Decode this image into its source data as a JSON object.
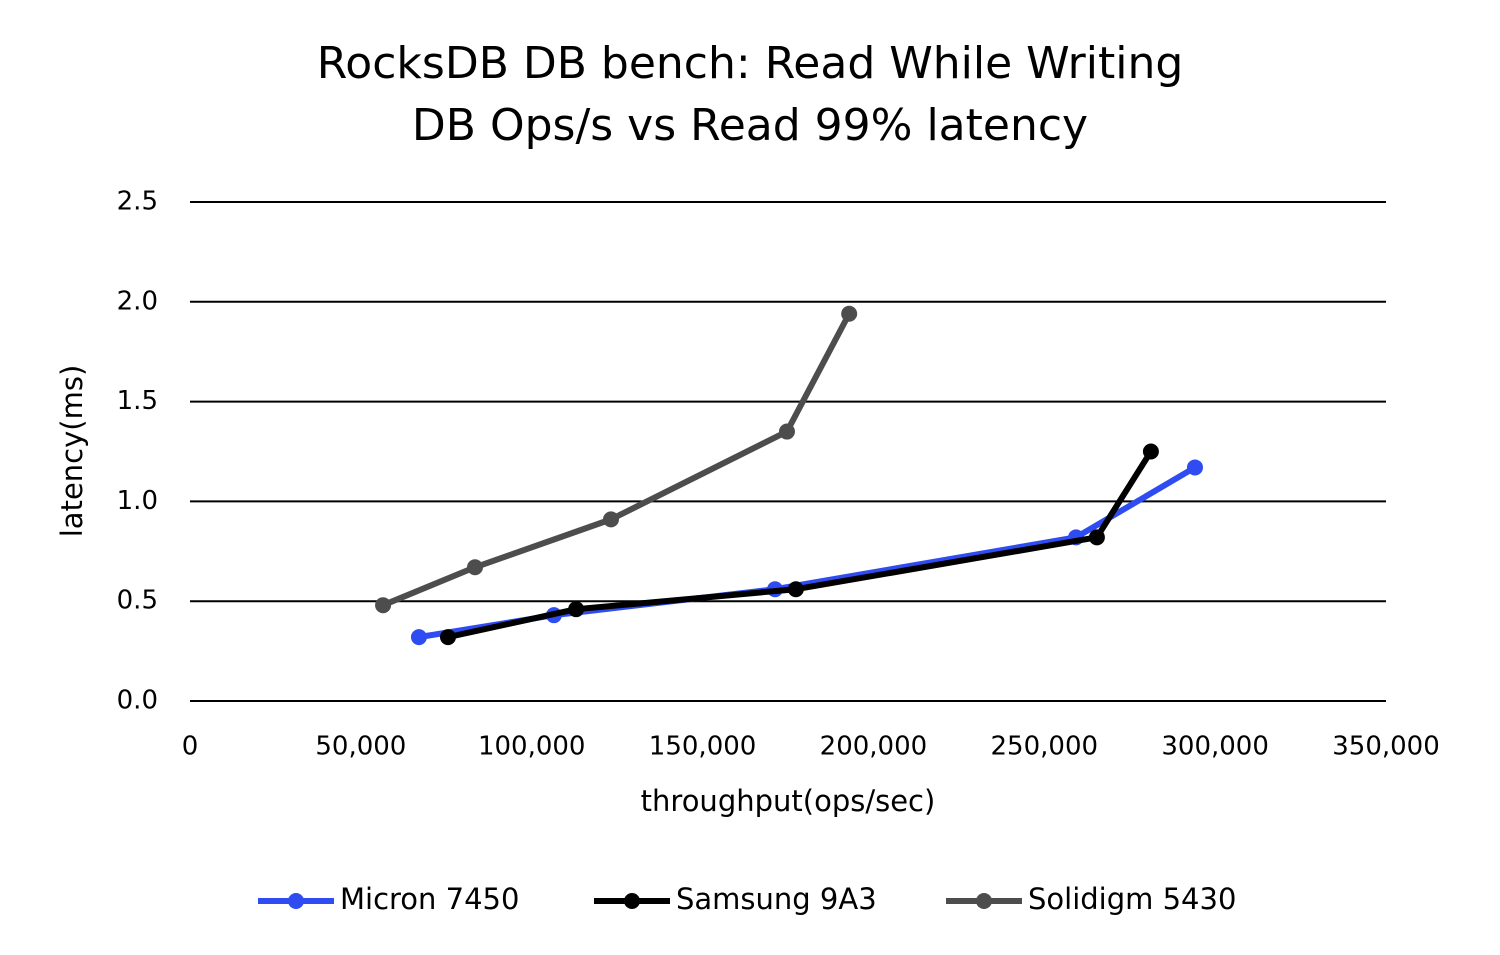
{
  "chart_data": {
    "type": "line",
    "title": [
      "RocksDB DB bench: Read While Writing",
      "DB Ops/s vs Read 99% latency"
    ],
    "x_label": "throughput(ops/sec)",
    "y_label": "latency(ms)",
    "xlim": [
      0,
      350000
    ],
    "xticks": [
      0,
      {
        "value": 50000,
        "label": "50,000"
      },
      {
        "value": 100000,
        "label": "100,000"
      },
      {
        "value": 150000,
        "label": "150,000"
      },
      {
        "value": 200000,
        "label": "200,000"
      },
      {
        "value": 250000,
        "label": "250,000"
      },
      {
        "value": 300000,
        "label": "300,000"
      },
      {
        "value": 350000,
        "label": "350,000"
      }
    ],
    "ylim": [
      0,
      2.5
    ],
    "yticks": [
      {
        "value": 0,
        "label": "0.0"
      },
      0.5,
      {
        "value": 1,
        "label": "1.0"
      },
      1.5,
      {
        "value": 2,
        "label": "2.0"
      },
      2.5
    ],
    "grid": true,
    "legend": "bottom",
    "series": [
      {
        "name": "Micron 7450",
        "color": "#2e4cf2",
        "x": [
          67000,
          106500,
          171200,
          259300,
          294100
        ],
        "values": [
          0.32,
          0.43,
          0.56,
          0.82,
          1.17
        ]
      },
      {
        "name": "Samsung 9A3",
        "color": "#000000",
        "x": [
          75500,
          113000,
          177300,
          265400,
          281200
        ],
        "values": [
          0.32,
          0.46,
          0.56,
          0.82,
          1.25
        ]
      },
      {
        "name": "Solidigm 5430",
        "color": "#4d4d4d",
        "x": [
          56500,
          83400,
          123200,
          174700,
          192900
        ],
        "values": [
          0.48,
          0.67,
          0.91,
          1.35,
          1.94
        ]
      }
    ]
  }
}
